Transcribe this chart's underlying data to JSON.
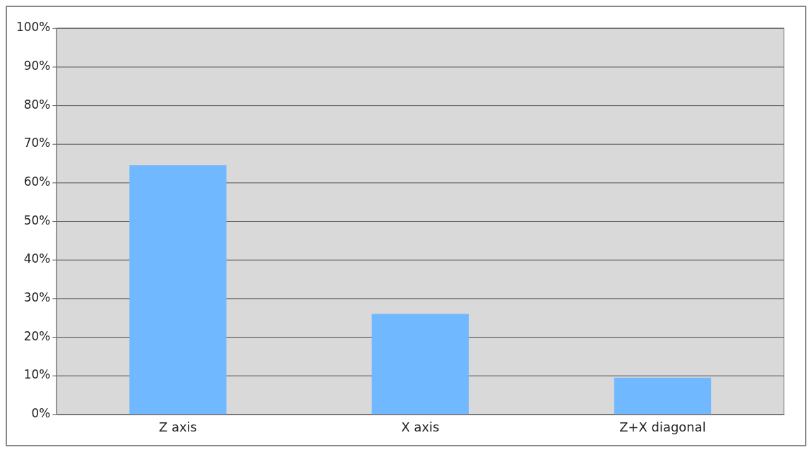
{
  "chart_data": {
    "type": "bar",
    "categories": [
      "Z axis",
      "X axis",
      "Z+X diagonal"
    ],
    "values": [
      64.5,
      26,
      9.5
    ],
    "color": "#70b8ff",
    "ylim": [
      0,
      100
    ],
    "yticks": [
      {
        "value": 0,
        "label": "0%"
      },
      {
        "value": 10,
        "label": "10%"
      },
      {
        "value": 20,
        "label": "20%"
      },
      {
        "value": 30,
        "label": "30%"
      },
      {
        "value": 40,
        "label": "40%"
      },
      {
        "value": 50,
        "label": "50%"
      },
      {
        "value": 60,
        "label": "60%"
      },
      {
        "value": 70,
        "label": "70%"
      },
      {
        "value": 80,
        "label": "80%"
      },
      {
        "value": 90,
        "label": "90%"
      },
      {
        "value": 100,
        "label": "100%"
      }
    ],
    "grid": "y",
    "legend": false
  }
}
